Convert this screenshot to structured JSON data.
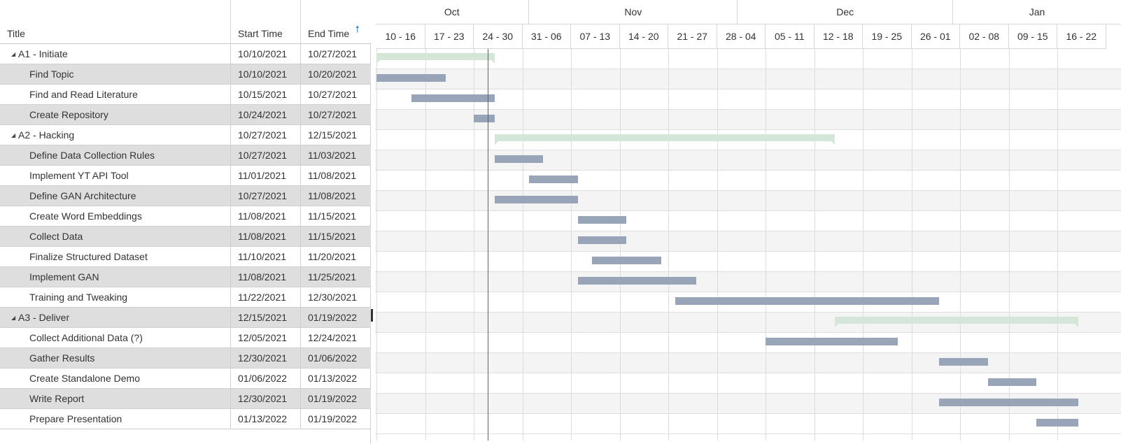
{
  "grid": {
    "columns": {
      "title": "Title",
      "start": "Start Time",
      "end": "End Time"
    },
    "sort_icon": "arrow-up-icon",
    "rows": [
      {
        "title": "A1 - Initiate",
        "start": "10/10/2021",
        "end": "10/27/2021",
        "summary": true
      },
      {
        "title": "Find Topic",
        "start": "10/10/2021",
        "end": "10/20/2021"
      },
      {
        "title": "Find and Read Literature",
        "start": "10/15/2021",
        "end": "10/27/2021"
      },
      {
        "title": "Create Repository",
        "start": "10/24/2021",
        "end": "10/27/2021"
      },
      {
        "title": "A2 - Hacking",
        "start": "10/27/2021",
        "end": "12/15/2021",
        "summary": true
      },
      {
        "title": "Define Data Collection Rules",
        "start": "10/27/2021",
        "end": "11/03/2021"
      },
      {
        "title": "Implement YT API Tool",
        "start": "11/01/2021",
        "end": "11/08/2021"
      },
      {
        "title": "Define GAN Architecture",
        "start": "10/27/2021",
        "end": "11/08/2021"
      },
      {
        "title": "Create Word Embeddings",
        "start": "11/08/2021",
        "end": "11/15/2021"
      },
      {
        "title": "Collect Data",
        "start": "11/08/2021",
        "end": "11/15/2021"
      },
      {
        "title": "Finalize Structured Dataset",
        "start": "11/10/2021",
        "end": "11/20/2021"
      },
      {
        "title": "Implement GAN",
        "start": "11/08/2021",
        "end": "11/25/2021"
      },
      {
        "title": "Training and Tweaking",
        "start": "11/22/2021",
        "end": "12/30/2021"
      },
      {
        "title": "A3 - Deliver",
        "start": "12/15/2021",
        "end": "01/19/2022",
        "summary": true
      },
      {
        "title": "Collect Additional Data (?)",
        "start": "12/05/2021",
        "end": "12/24/2021"
      },
      {
        "title": "Gather Results",
        "start": "12/30/2021",
        "end": "01/06/2022"
      },
      {
        "title": "Create Standalone Demo",
        "start": "01/06/2022",
        "end": "01/13/2022"
      },
      {
        "title": "Write Report",
        "start": "12/30/2021",
        "end": "01/19/2022"
      },
      {
        "title": "Prepare Presentation",
        "start": "01/13/2022",
        "end": "01/19/2022"
      }
    ]
  },
  "timeline": {
    "first_week_start": "2021-10-10",
    "today": "2021-10-26",
    "months": [
      {
        "label": "Oct",
        "start": "2021-10-01",
        "end": "2021-11-01"
      },
      {
        "label": "Nov",
        "start": "2021-11-01",
        "end": "2021-12-01"
      },
      {
        "label": "Dec",
        "start": "2021-12-01",
        "end": "2022-01-01"
      },
      {
        "label": "Jan",
        "start": "2022-01-01",
        "end": "2022-02-01"
      }
    ],
    "weeks": [
      "10 - 16",
      "17 - 23",
      "24 - 30",
      "31 - 06",
      "07 - 13",
      "14 - 20",
      "21 - 27",
      "28 - 04",
      "05 - 11",
      "12 - 18",
      "19 - 25",
      "26 - 01",
      "02 - 08",
      "09 - 15",
      "16 - 22"
    ]
  },
  "colors": {
    "task_bar": "#98a5b9",
    "summary_bar": "#d4e6d7",
    "today_line": "#d32f2f",
    "sort_arrow": "#1e88e5"
  }
}
